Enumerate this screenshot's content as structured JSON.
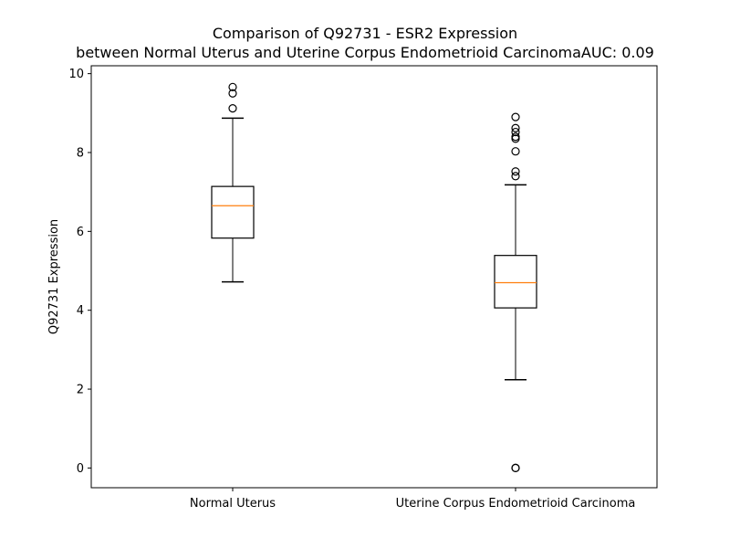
{
  "chart_data": {
    "type": "box",
    "title_lines": [
      "Comparison of Q92731 - ESR2 Expression",
      "between Normal Uterus and Uterine Corpus Endometrioid CarcinomaAUC: 0.09"
    ],
    "xlabel": "",
    "ylabel": "Q92731 Expression",
    "ylim": [
      -0.5,
      10.2
    ],
    "yticks": [
      0,
      2,
      4,
      6,
      8,
      10
    ],
    "categories": [
      "Normal Uterus",
      "Uterine Corpus Endometrioid Carcinoma"
    ],
    "boxes": [
      {
        "category": "Normal Uterus",
        "whisker_low": 4.72,
        "q1": 5.83,
        "median": 6.65,
        "q3": 7.14,
        "whisker_high": 8.87,
        "outliers": [
          9.12,
          9.5,
          9.66
        ]
      },
      {
        "category": "Uterine Corpus Endometrioid Carcinoma",
        "whisker_low": 2.24,
        "q1": 4.06,
        "median": 4.7,
        "q3": 5.39,
        "whisker_high": 7.18,
        "outliers": [
          0.0,
          0.0,
          7.4,
          7.52,
          8.03,
          8.35,
          8.4,
          8.52,
          8.62,
          8.9
        ]
      }
    ],
    "colors": {
      "median": "#ff7f0e",
      "box": "#000000"
    },
    "grid": false,
    "legend": "none"
  }
}
